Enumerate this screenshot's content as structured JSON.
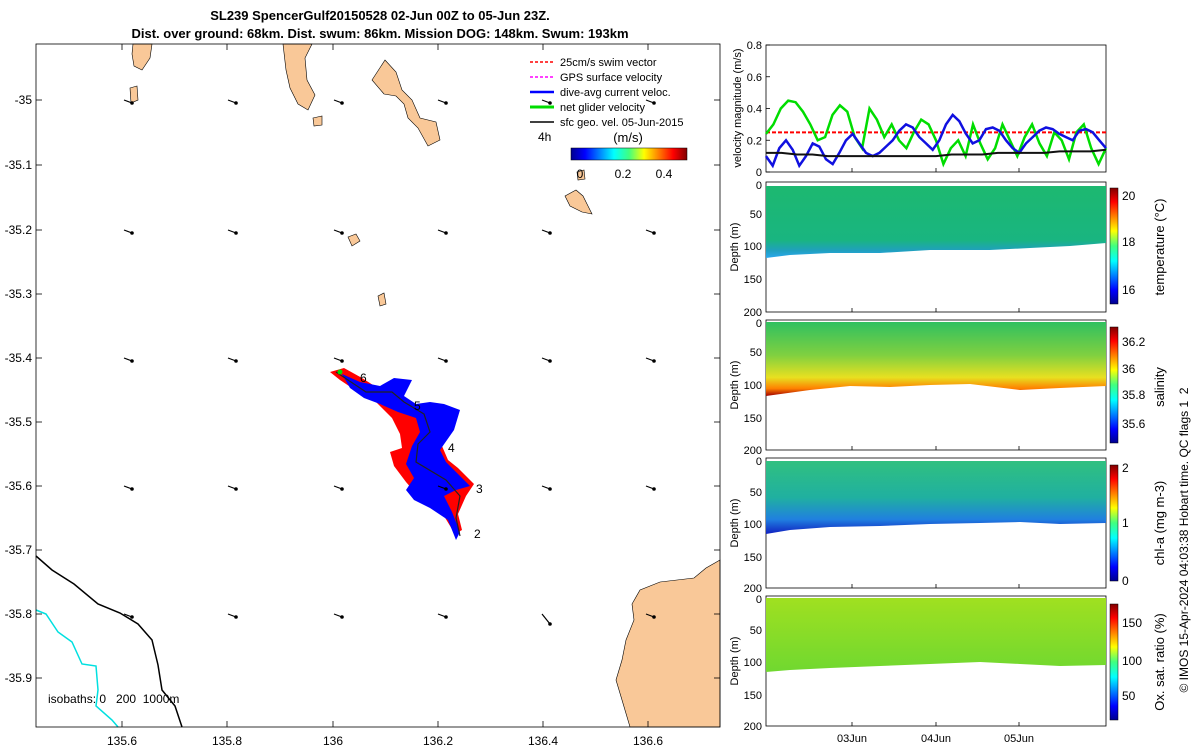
{
  "header": {
    "title_line1": "SL239 SpencerGulf20150528 02-Jun 00Z to 05-Jun 23Z.",
    "title_line2": "Dist. over ground: 68km. Dist. swum: 86km. Mission DOG: 148km. Swum: 193km"
  },
  "colors": {
    "land": "#f9c898",
    "swim_vector": "#ff0000",
    "gps_velocity": "#ff00ff",
    "dive_avg": "#0000ff",
    "net_velocity": "#00dd00",
    "surface_geo": "#000000",
    "isobath_200": "#000000",
    "isobath_1000": "#00e0e0"
  },
  "map": {
    "lon_ticks": [
      "135.6",
      "135.8",
      "136",
      "136.2",
      "136.4",
      "136.6"
    ],
    "lat_ticks": [
      "-35",
      "-35.1",
      "-35.2",
      "-35.3",
      "-35.4",
      "-35.5",
      "-35.6",
      "-35.7",
      "-35.8",
      "-35.9"
    ],
    "legend": [
      {
        "label": "25cm/s swim vector",
        "color": "#ff0000",
        "dashed": true
      },
      {
        "label": "GPS surface velocity",
        "color": "#ff00ff",
        "dashed": true
      },
      {
        "label": "dive-avg current veloc.",
        "color": "#0000ff",
        "dashed": false
      },
      {
        "label": "net glider velocity",
        "color": "#00dd00",
        "dashed": false
      },
      {
        "label": "sfc geo. vel. 05-Jun-2015",
        "color": "#000000",
        "dashed": false
      }
    ],
    "interval_label": "4h",
    "colorbar_unit": "(m/s)",
    "colorbar_ticks": [
      "0",
      "0.2",
      "0.4"
    ],
    "day_markers": [
      "2",
      "3",
      "4",
      "5",
      "6"
    ],
    "isobaths_label": "isobaths: 0   200  1000m"
  },
  "timeseries": {
    "ylabel": "velocity magnitude (m/s)",
    "yticks": [
      "0",
      "0.2",
      "0.4",
      "0.6",
      "0.8"
    ],
    "ylim": [
      0,
      0.8
    ],
    "swim_level": 0.25,
    "net_velocity": [
      0.24,
      0.3,
      0.4,
      0.45,
      0.44,
      0.38,
      0.3,
      0.2,
      0.22,
      0.36,
      0.42,
      0.38,
      0.22,
      0.15,
      0.4,
      0.33,
      0.22,
      0.3,
      0.2,
      0.15,
      0.25,
      0.33,
      0.3,
      0.2,
      0.05,
      0.15,
      0.2,
      0.1,
      0.3,
      0.18,
      0.08,
      0.15,
      0.3,
      0.2,
      0.1,
      0.22,
      0.3,
      0.18,
      0.1,
      0.25,
      0.2,
      0.08,
      0.25,
      0.3,
      0.15,
      0.05,
      0.15
    ],
    "dive_avg": [
      0.1,
      0.04,
      0.15,
      0.2,
      0.14,
      0.04,
      0.1,
      0.18,
      0.16,
      0.08,
      0.05,
      0.12,
      0.2,
      0.24,
      0.18,
      0.12,
      0.1,
      0.12,
      0.16,
      0.2,
      0.26,
      0.3,
      0.28,
      0.22,
      0.18,
      0.14,
      0.2,
      0.3,
      0.36,
      0.32,
      0.24,
      0.18,
      0.2,
      0.27,
      0.28,
      0.26,
      0.2,
      0.15,
      0.12,
      0.18,
      0.22,
      0.26,
      0.28,
      0.27,
      0.24,
      0.22,
      0.2,
      0.26,
      0.27,
      0.25,
      0.2,
      0.15
    ],
    "surface_geo": [
      0.12,
      0.12,
      0.11,
      0.11,
      0.1,
      0.1,
      0.1,
      0.1,
      0.1,
      0.1,
      0.1,
      0.1,
      0.11,
      0.11,
      0.11,
      0.12,
      0.12,
      0.12,
      0.12,
      0.13,
      0.13,
      0.13,
      0.14
    ]
  },
  "panels": [
    {
      "id": "temperature",
      "cbar_label": "temperature (°C)",
      "cbar_ticks": [
        "16",
        "18",
        "20"
      ],
      "cbar_range": [
        15.3,
        20.3
      ],
      "y_ticks": [
        "0",
        "50",
        "100",
        "150",
        "200"
      ],
      "y_label": "Depth (m)",
      "show_axis_top": false
    },
    {
      "id": "salinity",
      "cbar_label": "salinity",
      "cbar_ticks": [
        "35.6",
        "35.8",
        "36",
        "36.2"
      ],
      "cbar_range": [
        35.45,
        36.3
      ],
      "y_ticks": [
        "0",
        "50",
        "100",
        "150",
        "200"
      ],
      "y_label": "Depth (m)"
    },
    {
      "id": "chla",
      "cbar_label": "chl-a (mg m-3)",
      "cbar_ticks": [
        "0",
        "1",
        "2"
      ],
      "cbar_range": [
        0,
        2
      ],
      "y_ticks": [
        "0",
        "50",
        "100",
        "150",
        "200"
      ],
      "y_label": "Depth (m)"
    },
    {
      "id": "oxsat",
      "cbar_label": "Ox. sat. ratio (%)",
      "cbar_ticks": [
        "50",
        "100",
        "150"
      ],
      "cbar_range": [
        25,
        175
      ],
      "y_ticks": [
        "0",
        "50",
        "100",
        "150",
        "200"
      ],
      "y_label": "Depth (m)"
    }
  ],
  "time_ticks": [
    "03Jun",
    "04Jun",
    "05Jun"
  ],
  "footer": {
    "credit": "© IMOS 15-Apr-2024 04:03:38 Hobart time. QC flags 1  2"
  }
}
